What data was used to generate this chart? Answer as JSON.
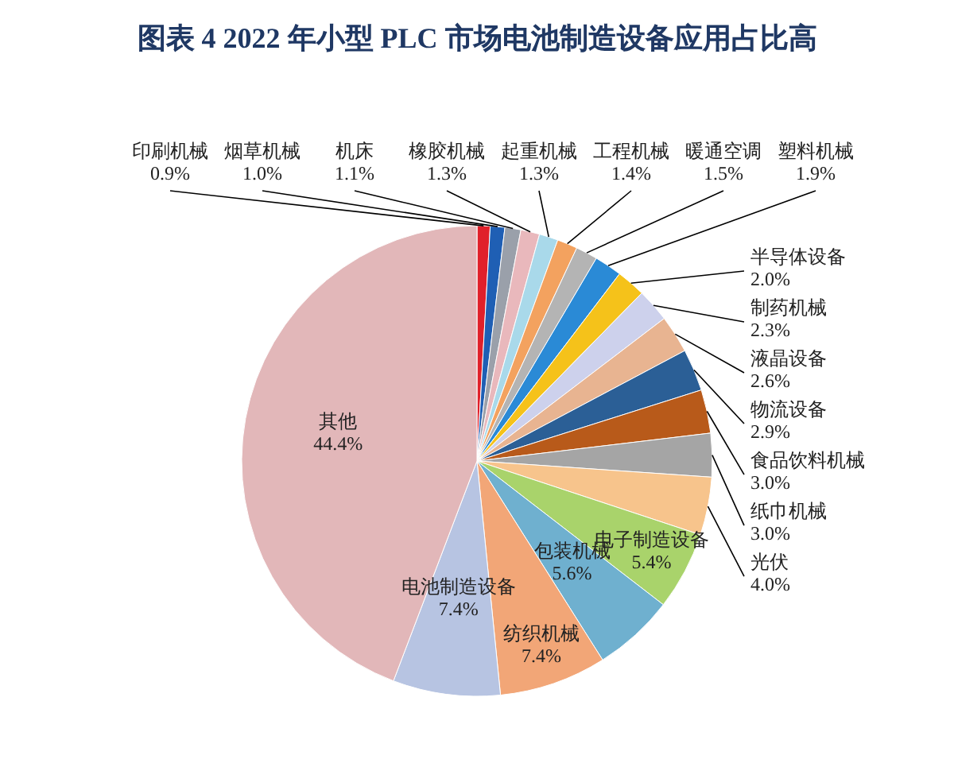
{
  "chart_data": {
    "type": "pie",
    "title": "图表 4  2022 年小型 PLC 市场电池制造设备应用占比高",
    "categories": [
      "印刷机械",
      "烟草机械",
      "机床",
      "橡胶机械",
      "起重机械",
      "工程机械",
      "暖通空调",
      "塑料机械",
      "半导体设备",
      "制药机械",
      "液晶设备",
      "物流设备",
      "食品饮料机械",
      "纸巾机械",
      "光伏",
      "电子制造设备",
      "包装机械",
      "纺织机械",
      "电池制造设备",
      "其他"
    ],
    "values": [
      0.9,
      1.0,
      1.1,
      1.3,
      1.3,
      1.4,
      1.5,
      1.9,
      2.0,
      2.3,
      2.6,
      2.9,
      3.0,
      3.0,
      4.0,
      5.4,
      5.6,
      7.4,
      7.4,
      44.4
    ],
    "value_labels": [
      "0.9%",
      "1.0%",
      "1.1%",
      "1.3%",
      "1.3%",
      "1.4%",
      "1.5%",
      "1.9%",
      "2.0%",
      "2.3%",
      "2.6%",
      "2.9%",
      "3.0%",
      "3.0%",
      "4.0%",
      "5.4%",
      "5.6%",
      "7.4%",
      "7.4%",
      "44.4%"
    ],
    "colors": [
      "#e0202a",
      "#1f5fb4",
      "#9aa0aa",
      "#e9b8bc",
      "#a9d9ea",
      "#f3a25f",
      "#b4b4b4",
      "#2a8ad6",
      "#f5c21a",
      "#cdd1ec",
      "#e8b491",
      "#2b5f96",
      "#b85a1a",
      "#a5a5a5",
      "#f7c48c",
      "#a9d36b",
      "#6fb0cf",
      "#f2a677",
      "#b7c4e2",
      "#e2b7b9"
    ]
  }
}
